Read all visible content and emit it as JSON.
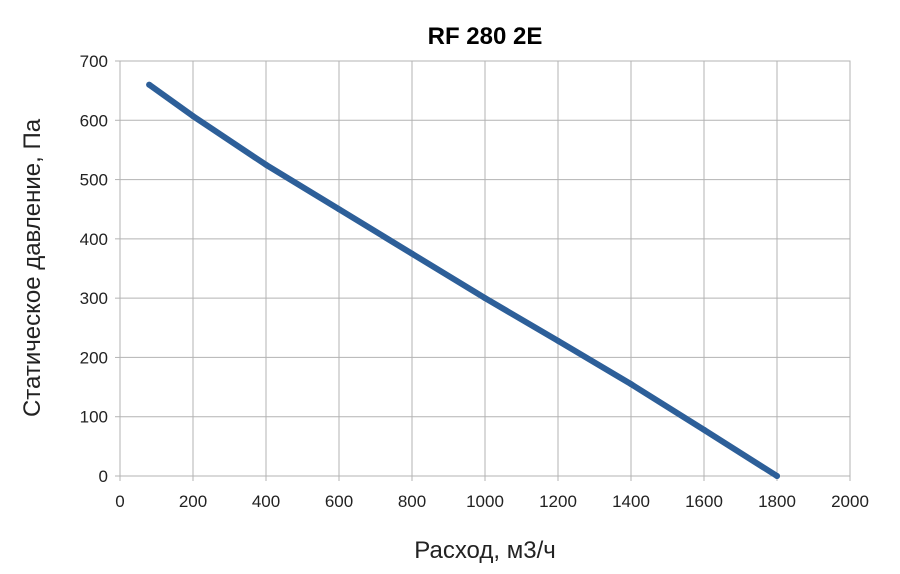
{
  "chart_data": {
    "type": "line",
    "title": "RF 280 2E",
    "xlabel": "Расход, м3/ч",
    "ylabel": "Статическое давление, Па",
    "xlim": [
      0,
      2000
    ],
    "ylim": [
      0,
      700
    ],
    "xticks": [
      0,
      200,
      400,
      600,
      800,
      1000,
      1200,
      1400,
      1600,
      1800,
      2000
    ],
    "yticks": [
      0,
      100,
      200,
      300,
      400,
      500,
      600,
      700
    ],
    "grid": true,
    "series": [
      {
        "color": "#2d5f99",
        "x": [
          80,
          200,
          400,
          600,
          800,
          1000,
          1200,
          1400,
          1600,
          1800
        ],
        "y": [
          660,
          607,
          525,
          450,
          375,
          300,
          228,
          155,
          78,
          0
        ]
      }
    ]
  }
}
